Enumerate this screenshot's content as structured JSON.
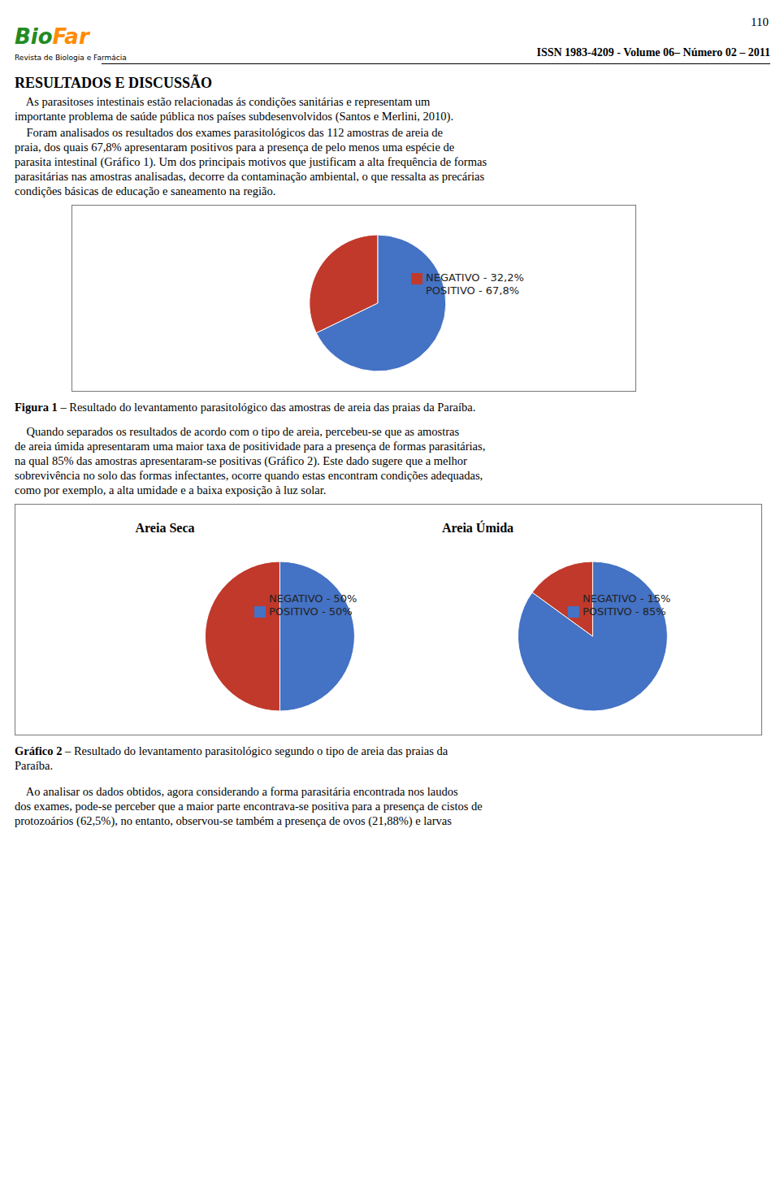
{
  "chart_data": [
    {
      "type": "pie",
      "categories": [
        "POSITIVO - 67,8%",
        "NEGATIVO - 32,2%"
      ],
      "values": [
        67.8,
        32.2
      ],
      "colors": [
        "#4472C4",
        "#C0392B"
      ],
      "legend": "right",
      "annotations": [
        {
          "text": "110"
        },
        {
          "text": "Bio",
          "color": "#228B22"
        },
        {
          "text": "Far",
          "color": "#FF8C00"
        },
        {
          "text": "Revista de Biologia e Farmácia"
        },
        {
          "text": "ISSN 1983-4209 - Volume 06– Número 02 – 2011"
        },
        {
          "text": "RESULTADOS E DISCUSSÃO"
        },
        {
          "text": "    As parasitoses intestinais estão relacionadas ás condições sanitárias e representam um"
        },
        {
          "text": "importante problema de saúde pública nos países subdesenvolvidos (Santos e Merlini, 2010)."
        },
        {
          "text": "    Foram analisados os resultados dos exames parasitológicos das 112 amostras de areia de"
        },
        {
          "text": "praia, dos quais 67,8% apresentaram positivos para a presença de pelo menos uma espécie de"
        },
        {
          "text": "parasita intestinal (Gráfico 1). Um dos principais motivos que justificam a alta frequência de formas"
        },
        {
          "text": "parasitárias nas amostras analisadas, decorre da contaminação ambiental, o que ressalta as precárias"
        },
        {
          "text": "condições básicas de educação e saneamento na região."
        },
        {
          "text": "Figura 1 – Resultado do levantamento parasitológico das amostras de areia das praias da Paraíba."
        },
        {
          "text": "    Quando separados os resultados de acordo com o tipo de areia, percebeu-se que as amostras"
        },
        {
          "text": "de areia úmida apresentaram uma maior taxa de positividade para a presença de formas parasitárias,"
        },
        {
          "text": "na qual 85% das amostras apresentaram-se positivas (Gráfico 2). Este dado sugere que a melhor"
        },
        {
          "text": "sobrevivência no solo das formas infectantes, ocorre quando estas encontram condições adequadas,"
        },
        {
          "text": "como por exemplo, a alta umidade e a baixa exposição à luz solar."
        },
        {
          "text": "Gráfico 2 – Resultado do levantamento parasitológico segundo o tipo de areia das praias da"
        },
        {
          "text": "Paraíba."
        },
        {
          "text": "    Ao analisar os dados obtidos, agora considerando a forma parasitária encontrada nos laudos"
        },
        {
          "text": "dos exames, pode-se perceber que a maior parte encontrava-se positiva para a presença de cistos de"
        },
        {
          "text": "protozoários (62,5%), no entanto, observou-se também a presença de ovos (21,88%) e larvas"
        }
      ]
    },
    {
      "type": "pie",
      "title": "Areia Seca",
      "categories": [
        "POSITIVO - 50%",
        "NEGATIVO - 50%"
      ],
      "values": [
        50,
        50
      ],
      "colors": [
        "#4472C4",
        "#C0392B"
      ],
      "legend": "right"
    },
    {
      "type": "pie",
      "title": "Areia Úmida",
      "categories": [
        "POSITIVO - 85%",
        "NEGATIVO - 15%"
      ],
      "values": [
        85,
        15
      ],
      "colors": [
        "#4472C4",
        "#C0392B"
      ],
      "legend": "right"
    }
  ]
}
